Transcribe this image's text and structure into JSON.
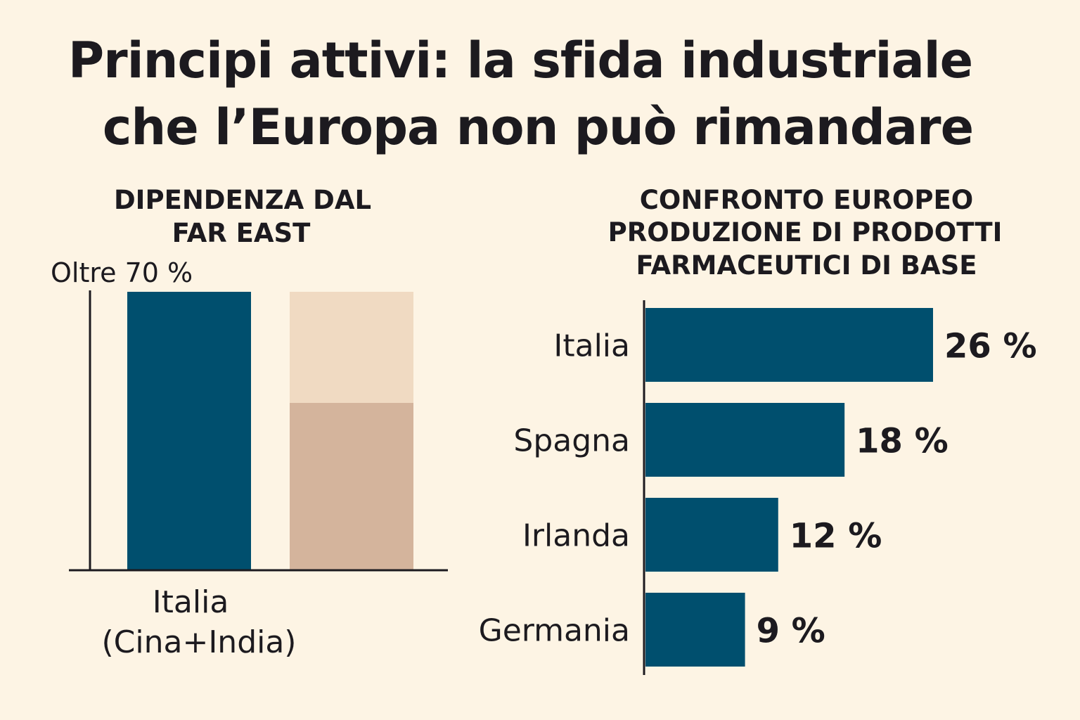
{
  "title": {
    "line1": "Principi attivi: la sfida industriale",
    "line2": "che l’Europa non può rimandare"
  },
  "colors": {
    "background": "#fdf4e4",
    "bar_primary": "#004f6e",
    "bar_light": "#f0dac2",
    "bar_tan": "#d4b49c",
    "text": "#1c1a1f"
  },
  "chart_data": [
    {
      "type": "bar",
      "title": [
        "DIPENDENZA DAL",
        "FAR EAST"
      ],
      "value_label": "Oltre 70 %",
      "categories": [
        "Italia (Cina+India)",
        ""
      ],
      "category_label_lines": [
        "Italia",
        "(Cina+India)"
      ],
      "series": [
        {
          "values": [
            70,
            42
          ],
          "stack": [
            true,
            true
          ]
        },
        {
          "values": [
            0,
            28
          ]
        }
      ],
      "ylim": [
        0,
        70
      ],
      "grid": false
    },
    {
      "type": "bar",
      "orientation": "horizontal",
      "title": [
        "CONFRONTO EUROPEO",
        "PRODUZIONE DI PRODOTTI",
        "FARMACEUTICI DI BASE"
      ],
      "categories": [
        "Italia",
        "Spagna",
        "Irlanda",
        "Germania"
      ],
      "values": [
        26,
        18,
        12,
        9
      ],
      "value_labels": [
        "26 %",
        "18 %",
        "12 %",
        "9 %"
      ],
      "unit": "%",
      "grid": false
    }
  ]
}
